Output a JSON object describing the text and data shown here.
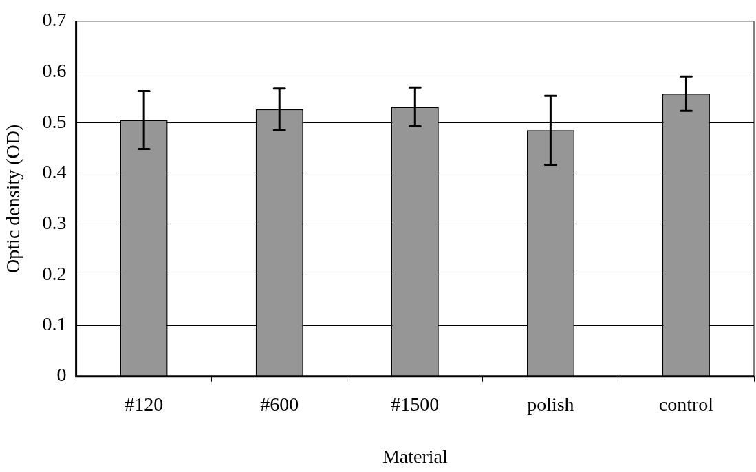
{
  "chart_data": {
    "type": "bar",
    "xlabel": "Material",
    "ylabel": "Optic density (OD)",
    "categories": [
      "#120",
      "#600",
      "#1500",
      "polish",
      "control"
    ],
    "values": [
      0.505,
      0.526,
      0.531,
      0.485,
      0.557
    ],
    "errors": [
      0.057,
      0.041,
      0.038,
      0.068,
      0.034
    ],
    "color": "#969696",
    "ylim": [
      0,
      0.7
    ],
    "yticks": [
      0,
      0.1,
      0.2,
      0.3,
      0.4,
      0.5,
      0.6,
      0.7
    ],
    "grid": "y",
    "legend": false
  }
}
